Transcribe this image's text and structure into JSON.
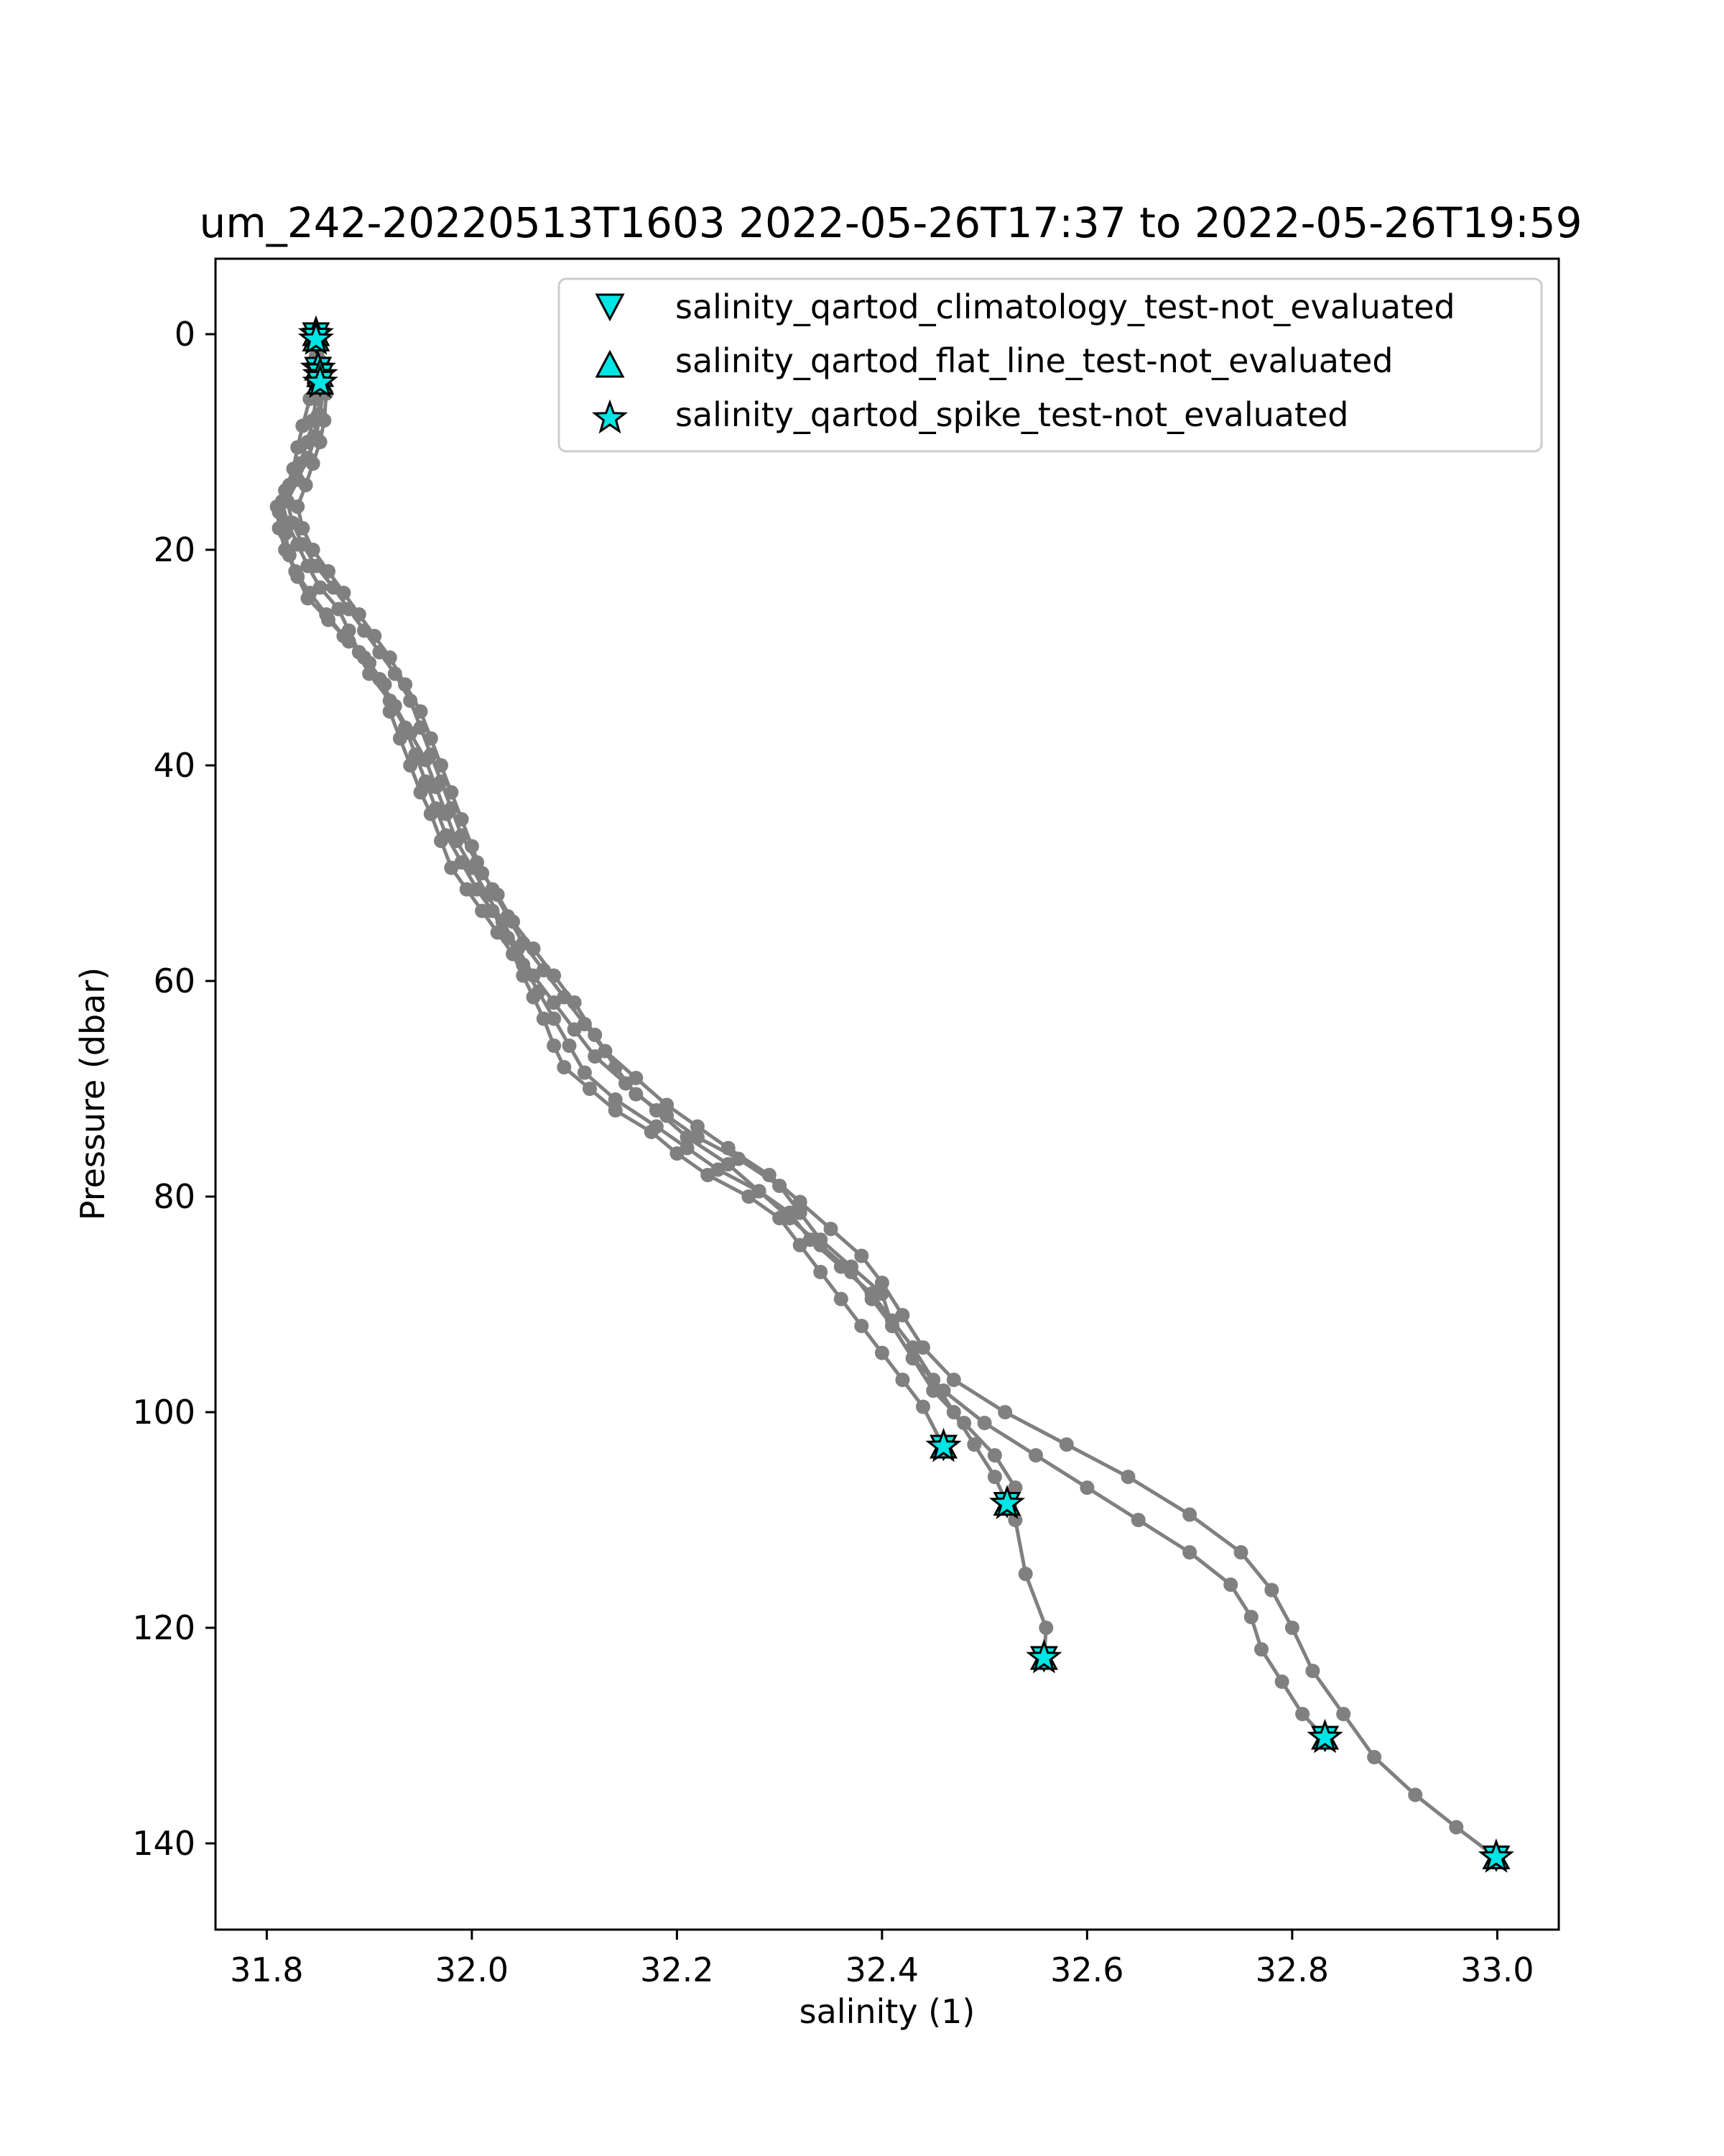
{
  "chart_data": {
    "type": "line",
    "title": "um_242-20220513T1603 2022-05-26T17:37 to 2022-05-26T19:59",
    "xlabel": "salinity (1)",
    "ylabel": "Pressure (dbar)",
    "xlim": [
      31.75,
      33.06
    ],
    "ylim": [
      148,
      -7
    ],
    "y_inverted": true,
    "grid": false,
    "x_ticks": [
      31.8,
      32.0,
      32.2,
      32.4,
      32.6,
      32.8,
      33.0
    ],
    "x_tick_labels": [
      "31.8",
      "32.0",
      "32.2",
      "32.4",
      "32.6",
      "32.8",
      "33.0"
    ],
    "y_ticks": [
      0,
      20,
      40,
      60,
      80,
      100,
      120,
      140
    ],
    "y_tick_labels": [
      "0",
      "20",
      "40",
      "60",
      "80",
      "100",
      "120",
      "140"
    ],
    "legend_position": "top-right",
    "colors": {
      "line": "#808080",
      "flag_marker": "#00e5e5",
      "marker_edge": "#000000"
    },
    "legend": [
      {
        "label": "salinity_qartod_climatology_test-not_evaluated",
        "marker": "triangle-down"
      },
      {
        "label": "salinity_qartod_flat_line_test-not_evaluated",
        "marker": "triangle-up"
      },
      {
        "label": "salinity_qartod_spike_test-not_evaluated",
        "marker": "star"
      }
    ],
    "series": [
      {
        "points": [
          [
            31.85,
            0.5
          ],
          [
            31.848,
            2
          ],
          [
            31.846,
            4.5
          ],
          [
            31.842,
            6
          ],
          [
            31.835,
            8.5
          ],
          [
            31.83,
            10.5
          ],
          [
            31.826,
            12.5
          ],
          [
            31.818,
            14.5
          ],
          [
            31.812,
            16.5
          ],
          [
            31.818,
            18.5
          ],
          [
            31.822,
            20.5
          ],
          [
            31.83,
            22.5
          ],
          [
            31.84,
            24.5
          ],
          [
            31.86,
            26.5
          ],
          [
            31.88,
            28.5
          ],
          [
            31.9,
            30.5
          ],
          [
            31.915,
            32.5
          ],
          [
            31.92,
            35
          ],
          [
            31.93,
            37.5
          ],
          [
            31.94,
            40
          ],
          [
            31.95,
            42.5
          ],
          [
            31.96,
            44.5
          ],
          [
            31.97,
            47
          ],
          [
            31.98,
            49.5
          ],
          [
            31.995,
            51.5
          ],
          [
            32.01,
            53.5
          ],
          [
            32.025,
            55.5
          ],
          [
            32.04,
            57.5
          ],
          [
            32.05,
            59.5
          ],
          [
            32.06,
            61.5
          ],
          [
            32.07,
            63.5
          ],
          [
            32.08,
            66
          ],
          [
            32.09,
            68
          ],
          [
            32.115,
            70
          ],
          [
            32.14,
            72
          ],
          [
            32.175,
            74
          ],
          [
            32.2,
            76
          ],
          [
            32.23,
            78
          ],
          [
            32.27,
            80
          ],
          [
            32.3,
            82
          ],
          [
            32.32,
            84.5
          ],
          [
            32.34,
            87
          ],
          [
            32.36,
            89.5
          ],
          [
            32.38,
            92
          ],
          [
            32.4,
            94.5
          ],
          [
            32.42,
            97
          ],
          [
            32.44,
            99.5
          ],
          [
            32.46,
            103.2
          ]
        ]
      },
      {
        "points": [
          [
            31.845,
            0
          ],
          [
            31.85,
            2.5
          ],
          [
            31.853,
            5
          ],
          [
            31.85,
            7.5
          ],
          [
            31.846,
            9.5
          ],
          [
            31.84,
            11.5
          ],
          [
            31.828,
            13.5
          ],
          [
            31.815,
            15.5
          ],
          [
            31.82,
            17.5
          ],
          [
            31.83,
            19.5
          ],
          [
            31.84,
            21.5
          ],
          [
            31.852,
            23.5
          ],
          [
            31.87,
            25.5
          ],
          [
            31.88,
            27.5
          ],
          [
            31.89,
            29.5
          ],
          [
            31.9,
            31.5
          ],
          [
            31.92,
            34
          ],
          [
            31.935,
            36.5
          ],
          [
            31.945,
            39
          ],
          [
            31.955,
            41.5
          ],
          [
            31.965,
            44
          ],
          [
            31.975,
            46.5
          ],
          [
            31.99,
            49
          ],
          [
            32.005,
            51.5
          ],
          [
            32.02,
            53.5
          ],
          [
            32.035,
            56
          ],
          [
            32.05,
            58.5
          ],
          [
            32.065,
            61
          ],
          [
            32.08,
            63.5
          ],
          [
            32.095,
            66
          ],
          [
            32.11,
            68.5
          ],
          [
            32.14,
            71
          ],
          [
            32.18,
            73.5
          ],
          [
            32.21,
            75.5
          ],
          [
            32.24,
            77.5
          ],
          [
            32.28,
            79.5
          ],
          [
            32.31,
            81.5
          ],
          [
            32.33,
            84
          ],
          [
            32.36,
            86.5
          ],
          [
            32.39,
            89
          ],
          [
            32.41,
            91.5
          ],
          [
            32.43,
            94
          ],
          [
            32.45,
            97
          ],
          [
            32.47,
            100
          ],
          [
            32.49,
            103
          ],
          [
            32.51,
            106
          ],
          [
            32.522,
            108.5
          ]
        ]
      },
      {
        "points": [
          [
            31.852,
            0.5
          ],
          [
            31.856,
            3
          ],
          [
            31.858,
            5.5
          ],
          [
            31.856,
            8
          ],
          [
            31.852,
            10
          ],
          [
            31.845,
            12
          ],
          [
            31.838,
            14
          ],
          [
            31.83,
            16
          ],
          [
            31.835,
            18
          ],
          [
            31.845,
            20
          ],
          [
            31.86,
            22
          ],
          [
            31.875,
            24
          ],
          [
            31.89,
            26
          ],
          [
            31.905,
            28
          ],
          [
            31.92,
            30
          ],
          [
            31.935,
            32.5
          ],
          [
            31.95,
            35
          ],
          [
            31.96,
            37.5
          ],
          [
            31.97,
            40
          ],
          [
            31.98,
            42.5
          ],
          [
            31.99,
            45
          ],
          [
            32.0,
            47.5
          ],
          [
            32.01,
            50
          ],
          [
            32.025,
            52
          ],
          [
            32.04,
            54.5
          ],
          [
            32.06,
            57
          ],
          [
            32.08,
            59.5
          ],
          [
            32.1,
            62
          ],
          [
            32.12,
            65
          ],
          [
            32.14,
            68
          ],
          [
            32.16,
            70.5
          ],
          [
            32.19,
            72.5
          ],
          [
            32.22,
            74.5
          ],
          [
            32.26,
            76.5
          ],
          [
            32.3,
            79
          ],
          [
            32.32,
            81.5
          ],
          [
            32.34,
            84
          ],
          [
            32.37,
            86.5
          ],
          [
            32.4,
            89
          ],
          [
            32.41,
            92
          ],
          [
            32.43,
            95
          ],
          [
            32.45,
            98
          ],
          [
            32.48,
            101
          ],
          [
            32.51,
            104
          ],
          [
            32.53,
            107
          ],
          [
            32.53,
            110
          ],
          [
            32.54,
            115
          ],
          [
            32.56,
            120
          ],
          [
            32.558,
            122.8
          ]
        ]
      },
      {
        "points": [
          [
            31.848,
            0
          ],
          [
            31.85,
            3
          ],
          [
            31.848,
            6
          ],
          [
            31.845,
            8
          ],
          [
            31.84,
            10
          ],
          [
            31.832,
            12
          ],
          [
            31.822,
            14
          ],
          [
            31.81,
            16
          ],
          [
            31.812,
            18
          ],
          [
            31.818,
            20
          ],
          [
            31.828,
            22
          ],
          [
            31.842,
            24
          ],
          [
            31.858,
            26
          ],
          [
            31.875,
            28
          ],
          [
            31.895,
            30
          ],
          [
            31.91,
            32
          ],
          [
            31.925,
            34.5
          ],
          [
            31.94,
            37
          ],
          [
            31.955,
            39.5
          ],
          [
            31.965,
            42
          ],
          [
            31.975,
            44.5
          ],
          [
            31.985,
            47
          ],
          [
            32.0,
            49.5
          ],
          [
            32.015,
            52
          ],
          [
            32.03,
            54.5
          ],
          [
            32.045,
            57
          ],
          [
            32.06,
            59.5
          ],
          [
            32.08,
            62
          ],
          [
            32.1,
            64.5
          ],
          [
            32.12,
            67
          ],
          [
            32.15,
            69.5
          ],
          [
            32.18,
            72
          ],
          [
            32.21,
            74.5
          ],
          [
            32.25,
            77
          ],
          [
            32.28,
            79.5
          ],
          [
            32.31,
            82
          ],
          [
            32.34,
            84.5
          ],
          [
            32.37,
            87
          ],
          [
            32.39,
            89.5
          ],
          [
            32.41,
            92
          ],
          [
            32.43,
            95
          ],
          [
            32.46,
            98
          ],
          [
            32.5,
            101
          ],
          [
            32.55,
            104
          ],
          [
            32.6,
            107
          ],
          [
            32.65,
            110
          ],
          [
            32.7,
            113
          ],
          [
            32.74,
            116
          ],
          [
            32.76,
            119
          ],
          [
            32.77,
            122
          ],
          [
            32.79,
            125
          ],
          [
            32.81,
            128
          ],
          [
            32.832,
            130.2
          ]
        ]
      },
      {
        "points": [
          [
            31.85,
            0
          ],
          [
            31.852,
            2.5
          ],
          [
            31.855,
            5
          ],
          [
            31.852,
            7.5
          ],
          [
            31.848,
            9.5
          ],
          [
            31.84,
            11.5
          ],
          [
            31.83,
            13.5
          ],
          [
            31.82,
            15.5
          ],
          [
            31.825,
            17.5
          ],
          [
            31.835,
            19.5
          ],
          [
            31.848,
            21.5
          ],
          [
            31.865,
            23.5
          ],
          [
            31.88,
            25.5
          ],
          [
            31.895,
            27.5
          ],
          [
            31.91,
            29.5
          ],
          [
            31.925,
            31.5
          ],
          [
            31.94,
            34
          ],
          [
            31.95,
            36.5
          ],
          [
            31.96,
            39
          ],
          [
            31.97,
            41.5
          ],
          [
            31.98,
            44
          ],
          [
            31.99,
            46.5
          ],
          [
            32.005,
            49
          ],
          [
            32.02,
            51.5
          ],
          [
            32.035,
            54
          ],
          [
            32.05,
            56.5
          ],
          [
            32.07,
            59
          ],
          [
            32.09,
            61.5
          ],
          [
            32.11,
            64
          ],
          [
            32.13,
            66.5
          ],
          [
            32.16,
            69
          ],
          [
            32.19,
            71.5
          ],
          [
            32.22,
            73.5
          ],
          [
            32.25,
            75.5
          ],
          [
            32.29,
            78
          ],
          [
            32.32,
            80.5
          ],
          [
            32.35,
            83
          ],
          [
            32.38,
            85.5
          ],
          [
            32.4,
            88
          ],
          [
            32.42,
            91
          ],
          [
            32.44,
            94
          ],
          [
            32.47,
            97
          ],
          [
            32.52,
            100
          ],
          [
            32.58,
            103
          ],
          [
            32.64,
            106
          ],
          [
            32.7,
            109.5
          ],
          [
            32.75,
            113
          ],
          [
            32.78,
            116.5
          ],
          [
            32.8,
            120
          ],
          [
            32.82,
            124
          ],
          [
            32.85,
            128
          ],
          [
            32.88,
            132
          ],
          [
            32.92,
            135.5
          ],
          [
            32.96,
            138.5
          ],
          [
            32.999,
            141.3
          ]
        ]
      }
    ],
    "flag_points": [
      [
        31.848,
        0
      ],
      [
        31.848,
        0.5
      ],
      [
        31.85,
        3.2
      ],
      [
        31.852,
        3.8
      ],
      [
        31.852,
        4.5
      ],
      [
        32.46,
        103.2
      ],
      [
        32.522,
        108.5
      ],
      [
        32.558,
        122.8
      ],
      [
        32.832,
        130.2
      ],
      [
        32.999,
        141.3
      ]
    ]
  }
}
